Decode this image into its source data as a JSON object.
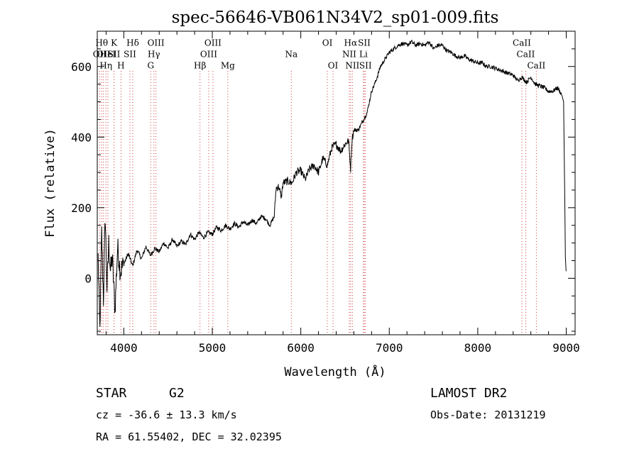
{
  "chart_data": {
    "type": "line",
    "title": "spec-56646-VB061N34V2_sp01-009.fits",
    "xlabel": "Wavelength (Å)",
    "ylabel": "Flux (relative)",
    "xlim": [
      3700,
      9100
    ],
    "ylim": [
      -160,
      700
    ],
    "xticks": [
      4000,
      5000,
      6000,
      7000,
      8000,
      9000
    ],
    "yticks": [
      0,
      200,
      400,
      600
    ],
    "series": [
      {
        "x": [
          3710,
          3730,
          3750,
          3770,
          3790,
          3810,
          3830,
          3850,
          3870,
          3900,
          3930,
          3960,
          4000,
          4050,
          4100,
          4150,
          4200,
          4250,
          4300,
          4350,
          4400,
          4450,
          4500,
          4550,
          4600,
          4650,
          4700,
          4750,
          4800,
          4850,
          4900,
          4950,
          5000,
          5050,
          5100,
          5150,
          5200,
          5250,
          5300,
          5350,
          5400,
          5450,
          5500,
          5550,
          5600,
          5650,
          5700,
          5720,
          5750,
          5780,
          5800,
          5850,
          5900,
          5950,
          6000,
          6050,
          6100,
          6150,
          6200,
          6250,
          6300,
          6350,
          6400,
          6450,
          6500,
          6540,
          6563,
          6580,
          6600,
          6650,
          6700,
          6750,
          6800,
          6850,
          6900,
          6950,
          7000,
          7050,
          7100,
          7150,
          7200,
          7250,
          7300,
          7350,
          7400,
          7450,
          7500,
          7550,
          7600,
          7650,
          7700,
          7750,
          7800,
          7850,
          7900,
          7950,
          8000,
          8050,
          8100,
          8150,
          8200,
          8250,
          8300,
          8350,
          8400,
          8450,
          8500,
          8550,
          8600,
          8650,
          8700,
          8750,
          8800,
          8850,
          8900,
          8950,
          8970,
          8980,
          8990,
          8998
        ],
        "y": [
          60,
          -150,
          130,
          -60,
          180,
          -30,
          100,
          20,
          60,
          -90,
          90,
          20,
          40,
          70,
          35,
          80,
          55,
          90,
          65,
          85,
          75,
          100,
          85,
          110,
          90,
          105,
          95,
          125,
          110,
          130,
          115,
          130,
          125,
          145,
          135,
          150,
          140,
          155,
          145,
          160,
          150,
          165,
          155,
          175,
          170,
          150,
          175,
          255,
          260,
          230,
          270,
          275,
          270,
          300,
          305,
          280,
          310,
          320,
          300,
          340,
          320,
          370,
          380,
          360,
          380,
          390,
          310,
          395,
          420,
          420,
          445,
          470,
          530,
          560,
          600,
          620,
          640,
          650,
          660,
          665,
          660,
          670,
          660,
          665,
          660,
          670,
          650,
          660,
          660,
          645,
          640,
          630,
          625,
          630,
          620,
          615,
          610,
          610,
          600,
          600,
          595,
          590,
          585,
          580,
          575,
          560,
          570,
          555,
          570,
          550,
          545,
          540,
          530,
          530,
          540,
          520,
          500,
          300,
          60,
          20
        ]
      }
    ],
    "line_markers": [
      {
        "x": 3727,
        "y": 0.915,
        "label": "OII"
      },
      {
        "x": 3750,
        "y": 0.952,
        "label": "Hθ"
      },
      {
        "x": 3770,
        "y": 0.915,
        "label": "OII"
      },
      {
        "x": 3798,
        "y": 0.877,
        "label": "Hη"
      },
      {
        "x": 3820,
        "y": 0.915,
        "label": "HeI"
      },
      {
        "x": 3889,
        "y": 0.952,
        "label": "K"
      },
      {
        "x": 3889,
        "y": 0.915,
        "label": "SII"
      },
      {
        "x": 3968,
        "y": 0.877,
        "label": "H"
      },
      {
        "x": 4101,
        "y": 0.952,
        "label": "Hδ"
      },
      {
        "x": 4069,
        "y": 0.915,
        "label": "SII"
      },
      {
        "x": 4340,
        "y": 0.915,
        "label": "Hγ"
      },
      {
        "x": 4304,
        "y": 0.877,
        "label": "G"
      },
      {
        "x": 4363,
        "y": 0.952,
        "label": "OIII"
      },
      {
        "x": 4861,
        "y": 0.877,
        "label": "Hβ"
      },
      {
        "x": 4959,
        "y": 0.915,
        "label": "OIII"
      },
      {
        "x": 5007,
        "y": 0.952,
        "label": "OIII"
      },
      {
        "x": 5175,
        "y": 0.877,
        "label": "Mg"
      },
      {
        "x": 5893,
        "y": 0.915,
        "label": "Na"
      },
      {
        "x": 6300,
        "y": 0.952,
        "label": "OI"
      },
      {
        "x": 6364,
        "y": 0.877,
        "label": "OI"
      },
      {
        "x": 6548,
        "y": 0.915,
        "label": "NII"
      },
      {
        "x": 6563,
        "y": 0.952,
        "label": "Hα"
      },
      {
        "x": 6583,
        "y": 0.877,
        "label": "NII"
      },
      {
        "x": 6717,
        "y": 0.952,
        "label": "SII"
      },
      {
        "x": 6708,
        "y": 0.915,
        "label": "Li"
      },
      {
        "x": 6731,
        "y": 0.877,
        "label": "SII"
      },
      {
        "x": 8498,
        "y": 0.952,
        "label": "CaII"
      },
      {
        "x": 8542,
        "y": 0.915,
        "label": "CaII"
      },
      {
        "x": 8662,
        "y": 0.877,
        "label": "CaII"
      }
    ]
  },
  "info": {
    "object_class": "STAR",
    "subclass": "G2",
    "survey": "LAMOST DR2",
    "cz": "cz = -36.6 ± 13.3 km/s",
    "obs_date": "Obs-Date: 20131219",
    "coords": "RA =  61.55402, DEC =  32.02395"
  }
}
